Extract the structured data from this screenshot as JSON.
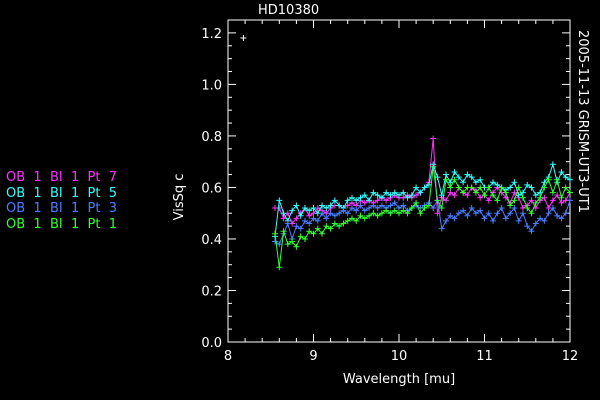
{
  "title": "HD10380",
  "side_label": "2005-11-13 GRISM-UT3-UT1",
  "legend": [
    {
      "label": "OB  1  BI  1  Pt  7",
      "color": "#ff33ff"
    },
    {
      "label": "OB  1  BI  1  Pt  5",
      "color": "#33ffff"
    },
    {
      "label": "OB  1  BI  1  Pt  3",
      "color": "#4a7dff"
    },
    {
      "label": "OB  1  BI  1  Pt  1",
      "color": "#33ff33"
    }
  ],
  "chart_data": {
    "type": "line",
    "xlabel": "Wavelength [mu]",
    "ylabel": "VisSq c",
    "xlim": [
      8,
      12
    ],
    "ylim": [
      0,
      1.25
    ],
    "xticks": [
      8,
      9,
      10,
      11,
      12
    ],
    "yticks": [
      0.0,
      0.2,
      0.4,
      0.6,
      0.8,
      1.0,
      1.2
    ],
    "grid": false,
    "annotation_point": {
      "x": 8.18,
      "y": 1.18,
      "color": "#ffffff"
    },
    "series": [
      {
        "name": "OB 1 BI 1 Pt 7",
        "color": "#ff33ff",
        "x": [
          8.55,
          8.6,
          8.65,
          8.7,
          8.75,
          8.8,
          8.85,
          8.9,
          8.95,
          9.0,
          9.05,
          9.1,
          9.15,
          9.2,
          9.25,
          9.3,
          9.35,
          9.4,
          9.45,
          9.5,
          9.55,
          9.6,
          9.65,
          9.7,
          9.75,
          9.8,
          9.85,
          9.9,
          9.95,
          10.0,
          10.05,
          10.1,
          10.15,
          10.2,
          10.25,
          10.3,
          10.35,
          10.4,
          10.45,
          10.5,
          10.55,
          10.6,
          10.65,
          10.7,
          10.75,
          10.8,
          10.85,
          10.9,
          10.95,
          11.0,
          11.05,
          11.1,
          11.15,
          11.2,
          11.25,
          11.3,
          11.35,
          11.4,
          11.45,
          11.5,
          11.55,
          11.6,
          11.65,
          11.7,
          11.75,
          11.8,
          11.85,
          11.9,
          11.95,
          12.0
        ],
        "y": [
          0.52,
          0.52,
          0.48,
          0.5,
          0.46,
          0.48,
          0.5,
          0.52,
          0.49,
          0.5,
          0.52,
          0.51,
          0.5,
          0.52,
          0.53,
          0.53,
          0.52,
          0.53,
          0.54,
          0.53,
          0.55,
          0.54,
          0.55,
          0.54,
          0.55,
          0.56,
          0.55,
          0.56,
          0.57,
          0.56,
          0.56,
          0.57,
          0.56,
          0.57,
          0.58,
          0.6,
          0.62,
          0.79,
          0.5,
          0.56,
          0.55,
          0.58,
          0.57,
          0.6,
          0.58,
          0.57,
          0.6,
          0.59,
          0.56,
          0.57,
          0.55,
          0.58,
          0.6,
          0.58,
          0.56,
          0.54,
          0.58,
          0.56,
          0.52,
          0.53,
          0.55,
          0.52,
          0.55,
          0.56,
          0.52,
          0.55,
          0.57,
          0.54,
          0.55,
          0.58
        ]
      },
      {
        "name": "OB 1 BI 1 Pt 5",
        "color": "#33ffff",
        "x": [
          8.55,
          8.6,
          8.65,
          8.7,
          8.75,
          8.8,
          8.85,
          8.9,
          8.95,
          9.0,
          9.05,
          9.1,
          9.15,
          9.2,
          9.25,
          9.3,
          9.35,
          9.4,
          9.45,
          9.5,
          9.55,
          9.6,
          9.65,
          9.7,
          9.75,
          9.8,
          9.85,
          9.9,
          9.95,
          10.0,
          10.05,
          10.1,
          10.15,
          10.2,
          10.25,
          10.3,
          10.35,
          10.4,
          10.45,
          10.5,
          10.55,
          10.6,
          10.65,
          10.7,
          10.75,
          10.8,
          10.85,
          10.9,
          10.95,
          11.0,
          11.05,
          11.1,
          11.15,
          11.2,
          11.25,
          11.3,
          11.35,
          11.4,
          11.45,
          11.5,
          11.55,
          11.6,
          11.65,
          11.7,
          11.75,
          11.8,
          11.85,
          11.9,
          11.95,
          12.0
        ],
        "y": [
          0.41,
          0.55,
          0.5,
          0.47,
          0.51,
          0.53,
          0.49,
          0.52,
          0.51,
          0.52,
          0.5,
          0.53,
          0.52,
          0.53,
          0.55,
          0.53,
          0.52,
          0.55,
          0.56,
          0.55,
          0.56,
          0.57,
          0.55,
          0.58,
          0.57,
          0.56,
          0.58,
          0.57,
          0.58,
          0.57,
          0.58,
          0.56,
          0.57,
          0.6,
          0.58,
          0.6,
          0.61,
          0.69,
          0.64,
          0.57,
          0.65,
          0.62,
          0.66,
          0.64,
          0.62,
          0.65,
          0.64,
          0.62,
          0.63,
          0.6,
          0.6,
          0.62,
          0.61,
          0.6,
          0.59,
          0.6,
          0.62,
          0.57,
          0.58,
          0.61,
          0.6,
          0.57,
          0.58,
          0.62,
          0.64,
          0.69,
          0.62,
          0.66,
          0.64,
          0.63
        ]
      },
      {
        "name": "OB 1 BI 1 Pt 3",
        "color": "#4a7dff",
        "x": [
          8.55,
          8.6,
          8.65,
          8.7,
          8.75,
          8.8,
          8.85,
          8.9,
          8.95,
          9.0,
          9.05,
          9.1,
          9.15,
          9.2,
          9.25,
          9.3,
          9.35,
          9.4,
          9.45,
          9.5,
          9.55,
          9.6,
          9.65,
          9.7,
          9.75,
          9.8,
          9.85,
          9.9,
          9.95,
          10.0,
          10.05,
          10.1,
          10.15,
          10.2,
          10.25,
          10.3,
          10.35,
          10.4,
          10.45,
          10.5,
          10.55,
          10.6,
          10.65,
          10.7,
          10.75,
          10.8,
          10.85,
          10.9,
          10.95,
          11.0,
          11.05,
          11.1,
          11.15,
          11.2,
          11.25,
          11.3,
          11.35,
          11.4,
          11.45,
          11.5,
          11.55,
          11.6,
          11.65,
          11.7,
          11.75,
          11.8,
          11.85,
          11.9,
          11.95,
          12.0
        ],
        "y": [
          0.39,
          0.38,
          0.42,
          0.46,
          0.4,
          0.45,
          0.44,
          0.47,
          0.46,
          0.48,
          0.47,
          0.5,
          0.48,
          0.5,
          0.49,
          0.5,
          0.51,
          0.5,
          0.52,
          0.51,
          0.53,
          0.51,
          0.52,
          0.53,
          0.52,
          0.53,
          0.52,
          0.53,
          0.54,
          0.52,
          0.53,
          0.51,
          0.52,
          0.53,
          0.52,
          0.53,
          0.54,
          0.52,
          0.55,
          0.44,
          0.47,
          0.49,
          0.48,
          0.5,
          0.51,
          0.49,
          0.52,
          0.5,
          0.51,
          0.48,
          0.5,
          0.47,
          0.5,
          0.52,
          0.48,
          0.5,
          0.52,
          0.47,
          0.5,
          0.45,
          0.43,
          0.46,
          0.48,
          0.47,
          0.5,
          0.52,
          0.49,
          0.48,
          0.5,
          0.55
        ]
      },
      {
        "name": "OB 1 BI 1 Pt 1",
        "color": "#33ff33",
        "x": [
          8.55,
          8.6,
          8.65,
          8.7,
          8.75,
          8.8,
          8.85,
          8.9,
          8.95,
          9.0,
          9.05,
          9.1,
          9.15,
          9.2,
          9.25,
          9.3,
          9.35,
          9.4,
          9.45,
          9.5,
          9.55,
          9.6,
          9.65,
          9.7,
          9.75,
          9.8,
          9.85,
          9.9,
          9.95,
          10.0,
          10.05,
          10.1,
          10.15,
          10.2,
          10.25,
          10.3,
          10.35,
          10.4,
          10.45,
          10.5,
          10.55,
          10.6,
          10.65,
          10.7,
          10.75,
          10.8,
          10.85,
          10.9,
          10.95,
          11.0,
          11.05,
          11.1,
          11.15,
          11.2,
          11.25,
          11.3,
          11.35,
          11.4,
          11.45,
          11.5,
          11.55,
          11.6,
          11.65,
          11.7,
          11.75,
          11.8,
          11.85,
          11.9,
          11.95,
          12.0
        ],
        "y": [
          0.42,
          0.29,
          0.43,
          0.38,
          0.39,
          0.37,
          0.41,
          0.4,
          0.43,
          0.42,
          0.44,
          0.42,
          0.45,
          0.44,
          0.46,
          0.45,
          0.46,
          0.47,
          0.48,
          0.47,
          0.49,
          0.48,
          0.49,
          0.5,
          0.49,
          0.5,
          0.51,
          0.5,
          0.51,
          0.5,
          0.51,
          0.5,
          0.52,
          0.54,
          0.5,
          0.52,
          0.53,
          0.68,
          0.55,
          0.52,
          0.63,
          0.6,
          0.63,
          0.6,
          0.58,
          0.6,
          0.6,
          0.58,
          0.6,
          0.57,
          0.6,
          0.57,
          0.55,
          0.6,
          0.58,
          0.53,
          0.55,
          0.6,
          0.56,
          0.52,
          0.5,
          0.54,
          0.56,
          0.6,
          0.63,
          0.58,
          0.63,
          0.56,
          0.6,
          0.58
        ]
      }
    ]
  }
}
